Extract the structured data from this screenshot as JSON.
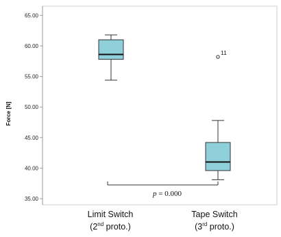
{
  "chart_data": {
    "type": "box",
    "title": "",
    "ylabel": "Force [N]",
    "xlabel": "",
    "ylim": [
      34.0,
      66.5
    ],
    "yticks": [
      35,
      40,
      45,
      50,
      55,
      60,
      65
    ],
    "ytick_labels": [
      "35.00",
      "40.00",
      "45.00",
      "50.00",
      "55.00",
      "60.00",
      "65.00"
    ],
    "grid": false,
    "box_color": "#8ecfd9",
    "categories": [
      {
        "label_line1": "Limit Switch",
        "label_line2_pre": "(2",
        "label_line2_sup": "nd",
        "label_line2_post": " proto.)",
        "min": 54.4,
        "q1": 57.8,
        "median": 58.6,
        "q3": 61.0,
        "max": 61.8,
        "outliers": []
      },
      {
        "label_line1": "Tape Switch",
        "label_line2_pre": "(3",
        "label_line2_sup": "rd",
        "label_line2_post": " proto.)",
        "min": 38.1,
        "q1": 39.6,
        "median": 41.0,
        "q3": 44.2,
        "max": 47.8,
        "outliers": [
          {
            "value": 58.2,
            "label": "11"
          }
        ]
      }
    ],
    "annotation": {
      "p_symbol": "p",
      "p_text": " = 0.000"
    }
  }
}
